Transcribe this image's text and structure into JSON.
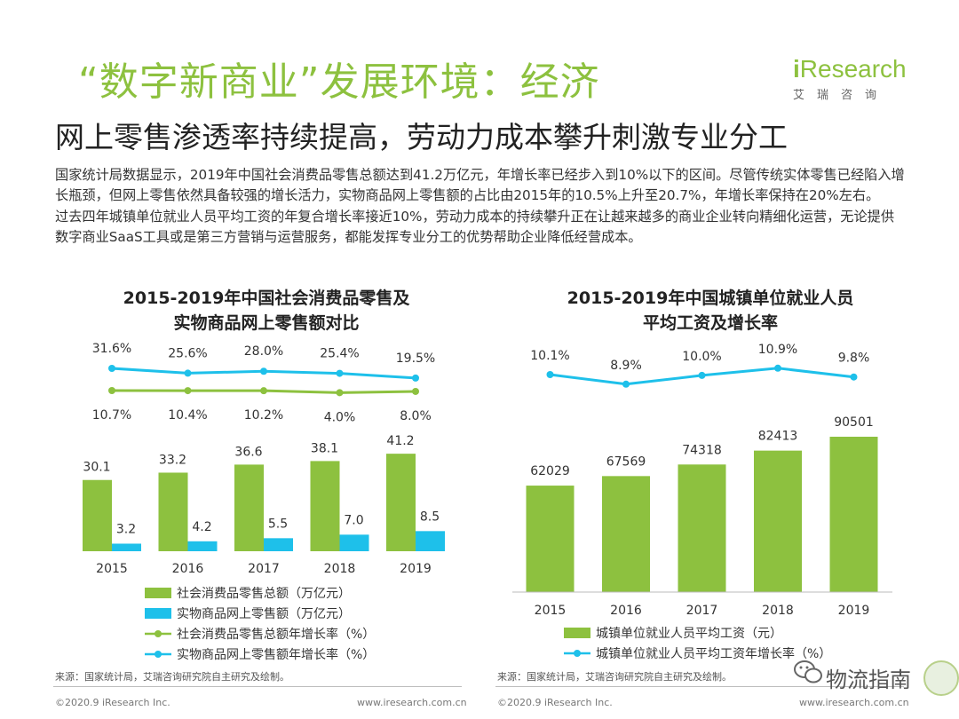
{
  "header": {
    "title": "“数字新商业”发展环境：经济",
    "subtitle": "网上零售渗透率持续提高，劳动力成本攀升刺激专业分工",
    "logo_text_i": "i",
    "logo_text_rest": "Research",
    "logo_cn": "艾瑞咨询"
  },
  "body_text": {
    "p1": "国家统计局数据显示，2019年中国社会消费品零售总额达到41.2万亿元，年增长率已经步入到10%以下的区间。尽管传统实体零售已经陷入增长瓶颈，但网上零售依然具备较强的增长活力，实物商品网上零售额的占比由2015年的10.5%上升至20.7%，年增长率保持在20%左右。",
    "p2": "过去四年城镇单位就业人员平均工资的年复合增长率接近10%，劳动力成本的持续攀升正在让越来越多的商业企业转向精细化运营，无论提供数字商业SaaS工具或是第三方营销与运营服务，都能发挥专业分工的优势帮助企业降低经营成本。"
  },
  "chart_data": [
    {
      "type": "bar",
      "title": "2015-2019年中国社会消费品零售及实物商品网上零售额对比",
      "title_line1": "2015-2019年中国社会消费品零售及",
      "title_line2": "实物商品网上零售额对比",
      "categories": [
        "2015",
        "2016",
        "2017",
        "2018",
        "2019"
      ],
      "series": [
        {
          "name": "社会消费品零售总额（万亿元）",
          "kind": "bar",
          "color": "#8dc13f",
          "values": [
            30.1,
            33.2,
            36.6,
            38.1,
            41.2
          ]
        },
        {
          "name": "实物商品网上零售额（万亿元）",
          "kind": "bar",
          "color": "#1ec0ea",
          "values": [
            3.2,
            4.2,
            5.5,
            7.0,
            8.5
          ]
        },
        {
          "name": "社会消费品零售总额年增长率（%）",
          "kind": "line",
          "color": "#8dc13f",
          "values": [
            10.7,
            10.4,
            10.2,
            4.0,
            8.0
          ],
          "labels": [
            "10.7%",
            "10.4%",
            "10.2%",
            "4.0%",
            "8.0%"
          ]
        },
        {
          "name": "实物商品网上零售额年增长率（%）",
          "kind": "line",
          "color": "#1ec0ea",
          "values": [
            31.6,
            25.6,
            28.0,
            25.4,
            19.5
          ],
          "labels": [
            "31.6%",
            "25.6%",
            "28.0%",
            "25.4%",
            "19.5%"
          ]
        }
      ],
      "bar_labels_1": [
        "30.1",
        "33.2",
        "36.6",
        "38.1",
        "41.2"
      ],
      "bar_labels_2": [
        "3.2",
        "4.2",
        "5.5",
        "7.0",
        "8.5"
      ],
      "legend_position": "bottom",
      "source": "来源：国家统计局，艾瑞咨询研究院自主研究及绘制。"
    },
    {
      "type": "bar",
      "title": "2015-2019年中国城镇单位就业人员平均工资及增长率",
      "title_line1": "2015-2019年中国城镇单位就业人员",
      "title_line2": "平均工资及增长率",
      "categories": [
        "2015",
        "2016",
        "2017",
        "2018",
        "2019"
      ],
      "series": [
        {
          "name": "城镇单位就业人员平均工资（元）",
          "kind": "bar",
          "color": "#8dc13f",
          "values": [
            62029,
            67569,
            74318,
            82413,
            90501
          ]
        },
        {
          "name": "城镇单位就业人员平均工资年增长率（%）",
          "kind": "line",
          "color": "#1ec0ea",
          "values": [
            10.1,
            8.9,
            10.0,
            10.9,
            9.8
          ],
          "labels": [
            "10.1%",
            "8.9%",
            "10.0%",
            "10.9%",
            "9.8%"
          ]
        }
      ],
      "bar_labels_1": [
        "62029",
        "67569",
        "74318",
        "82413",
        "90501"
      ],
      "legend_position": "bottom",
      "source": "来源：国家统计局，艾瑞咨询研究院自主研究及绘制。"
    }
  ],
  "footer": {
    "copyright_left": "©2020.9 iResearch Inc.",
    "url_left": "www.iresearch.com.cn",
    "copyright_right": "©2020.9 iResearch Inc.",
    "url_right": "www.iresearch.com.cn"
  },
  "watermark": {
    "text": "物流指南"
  },
  "colors": {
    "green": "#8dc13f",
    "blue": "#1ec0ea",
    "title_green": "#8dc13f"
  }
}
